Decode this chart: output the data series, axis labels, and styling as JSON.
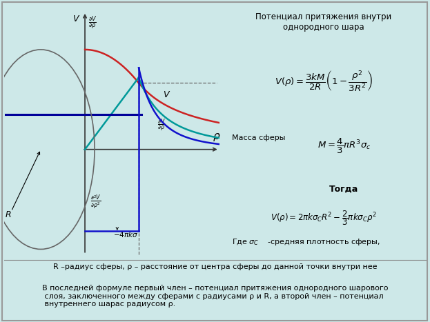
{
  "bg_color": "#cde8e8",
  "title_text": "Потенциал притяжения внутри\nоднородного шара",
  "formula1": "$V(\\rho) = \\dfrac{3kM}{2R}\\left(1 - \\dfrac{\\rho^2}{3R^2}\\right)$",
  "mass_label": "Масса сферы",
  "mass_formula": "$M = \\dfrac{4}{3}\\pi R^3 \\sigma_c$",
  "togda": "Тогда",
  "formula2": "$V(\\rho) = 2\\pi k \\sigma_C R^2 - \\dfrac{2}{3}\\pi k \\sigma_C \\rho^2$",
  "gde": "Где $\\sigma_C$    -средняя плотность сферы,",
  "footnote1": "R –радиус сферы, ρ – расстояние от центра сферы до данной точки внутри нее",
  "footnote2": "В последней формуле первый член – потенциал притяжения однородного шарового\n слоя, заключенного между сферами с радиусами ρ и R, а второй член – потенциал\n внутреннего шарас радиусом ρ.",
  "label_V": "V",
  "label_R": "R",
  "R_val": 1.0,
  "x_max": 2.5,
  "colors": {
    "red": "#cc2222",
    "teal": "#009999",
    "blue": "#1111cc",
    "dark_blue": "#000099",
    "circle": "#666666",
    "axis": "#333333",
    "dashed": "#666666"
  }
}
